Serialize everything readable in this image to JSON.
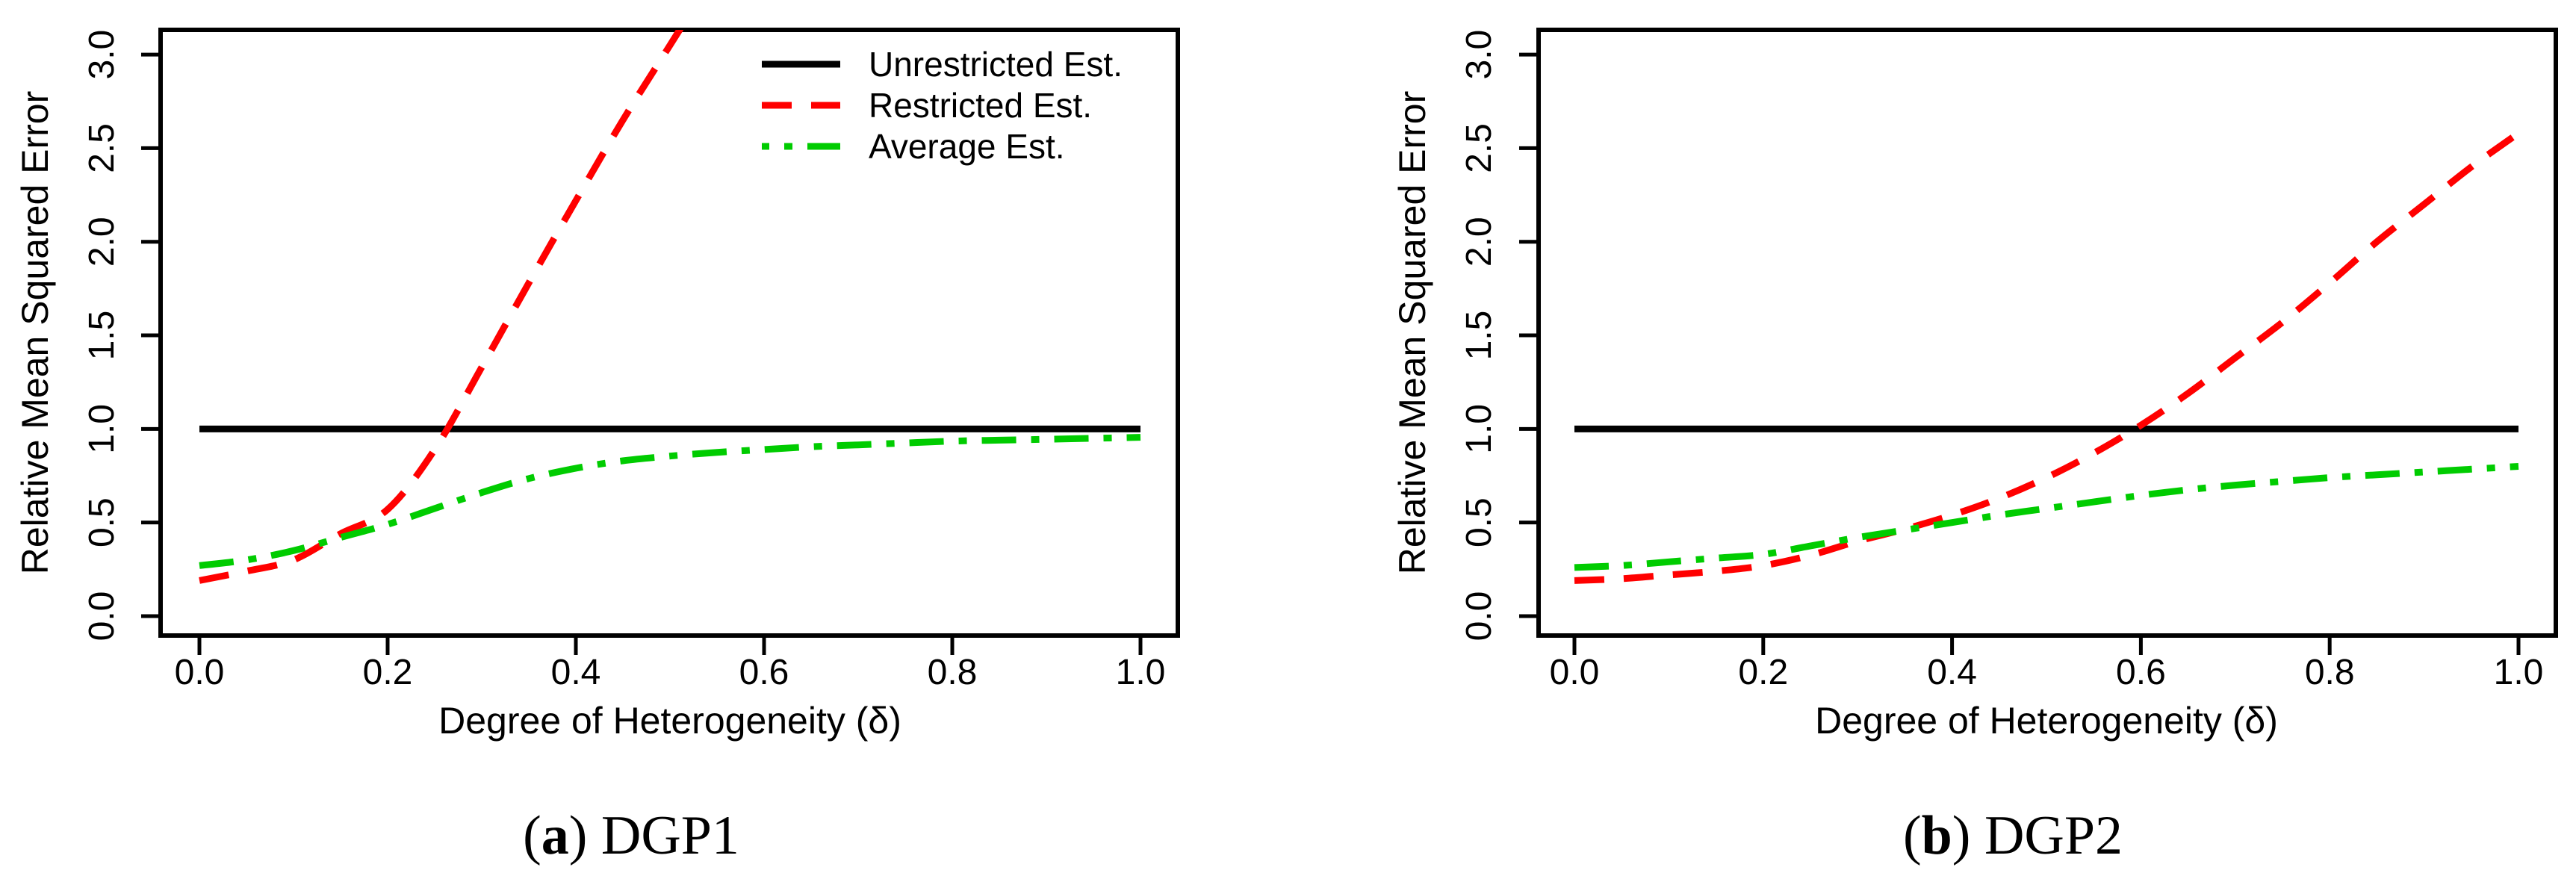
{
  "figure": {
    "background": "#ffffff",
    "text_color": "#000000"
  },
  "chart_data": [
    {
      "type": "line",
      "panel": "a",
      "caption": {
        "open": "(",
        "letter": "a",
        "close": ")",
        "label": "DGP1"
      },
      "xlabel": "Degree of Heterogeneity (δ)",
      "ylabel": "Relative Mean Squared Error",
      "xlim": [
        0.0,
        1.0
      ],
      "ylim": [
        0.0,
        3.0
      ],
      "x_ticks": [
        "0.0",
        "0.2",
        "0.4",
        "0.6",
        "0.8",
        "1.0"
      ],
      "y_ticks": [
        "0.0",
        "0.5",
        "1.0",
        "1.5",
        "2.0",
        "2.5",
        "3.0"
      ],
      "grid": false,
      "legend": {
        "show": true,
        "position": "top-right"
      },
      "series": [
        {
          "name": "Unrestricted Est.",
          "color": "#000000",
          "style": "solid",
          "x": [
            0.0,
            1.0
          ],
          "y": [
            1.0,
            1.0
          ]
        },
        {
          "name": "Restricted Est.",
          "color": "#ff0000",
          "style": "dashed",
          "x": [
            0.0,
            0.05,
            0.1,
            0.15,
            0.2,
            0.25,
            0.3,
            0.35,
            0.4,
            0.45,
            0.5,
            0.55
          ],
          "y": [
            0.19,
            0.24,
            0.3,
            0.44,
            0.57,
            0.89,
            1.33,
            1.78,
            2.22,
            2.65,
            3.05,
            3.45
          ],
          "note": "rises steeply, crosses 1.0 near δ=0.26, exits top of plot near δ=0.51"
        },
        {
          "name": "Average Est.",
          "color": "#00cc00",
          "style": "dashdot",
          "x": [
            0.0,
            0.05,
            0.1,
            0.15,
            0.2,
            0.25,
            0.3,
            0.35,
            0.4,
            0.45,
            0.5,
            0.55,
            0.6,
            0.65,
            0.7,
            0.75,
            0.8,
            0.85,
            0.9,
            0.95,
            1.0
          ],
          "y": [
            0.27,
            0.3,
            0.35,
            0.42,
            0.49,
            0.575,
            0.66,
            0.735,
            0.79,
            0.83,
            0.855,
            0.875,
            0.89,
            0.905,
            0.915,
            0.925,
            0.935,
            0.94,
            0.945,
            0.95,
            0.955
          ]
        }
      ]
    },
    {
      "type": "line",
      "panel": "b",
      "caption": {
        "open": "(",
        "letter": "b",
        "close": ")",
        "label": "DGP2"
      },
      "xlabel": "Degree of Heterogeneity (δ)",
      "ylabel": "Relative Mean Squared Error",
      "xlim": [
        0.0,
        1.0
      ],
      "ylim": [
        0.0,
        3.0
      ],
      "x_ticks": [
        "0.0",
        "0.2",
        "0.4",
        "0.6",
        "0.8",
        "1.0"
      ],
      "y_ticks": [
        "0.0",
        "0.5",
        "1.0",
        "1.5",
        "2.0",
        "2.5",
        "3.0"
      ],
      "grid": false,
      "legend": {
        "show": false,
        "position": "top-right"
      },
      "series": [
        {
          "name": "Unrestricted Est.",
          "color": "#000000",
          "style": "solid",
          "x": [
            0.0,
            1.0
          ],
          "y": [
            1.0,
            1.0
          ]
        },
        {
          "name": "Restricted Est.",
          "color": "#ff0000",
          "style": "dashed",
          "x": [
            0.0,
            0.05,
            0.1,
            0.15,
            0.2,
            0.25,
            0.3,
            0.35,
            0.4,
            0.45,
            0.5,
            0.55,
            0.6,
            0.65,
            0.7,
            0.75,
            0.8,
            0.85,
            0.9,
            0.95,
            1.0
          ],
          "y": [
            0.19,
            0.2,
            0.22,
            0.24,
            0.27,
            0.325,
            0.4,
            0.465,
            0.54,
            0.63,
            0.74,
            0.87,
            1.02,
            1.19,
            1.38,
            1.57,
            1.78,
            2.0,
            2.2,
            2.4,
            2.58
          ],
          "note": "crosses Average Est. near δ=0.35 and crosses 1.0 near δ=0.59"
        },
        {
          "name": "Average Est.",
          "color": "#00cc00",
          "style": "dashdot",
          "x": [
            0.0,
            0.05,
            0.1,
            0.15,
            0.2,
            0.25,
            0.3,
            0.35,
            0.4,
            0.45,
            0.5,
            0.55,
            0.6,
            0.65,
            0.7,
            0.75,
            0.8,
            0.85,
            0.9,
            0.95,
            1.0
          ],
          "y": [
            0.26,
            0.27,
            0.29,
            0.31,
            0.33,
            0.375,
            0.42,
            0.46,
            0.5,
            0.54,
            0.575,
            0.61,
            0.645,
            0.675,
            0.7,
            0.72,
            0.74,
            0.755,
            0.77,
            0.785,
            0.8
          ]
        }
      ]
    }
  ]
}
